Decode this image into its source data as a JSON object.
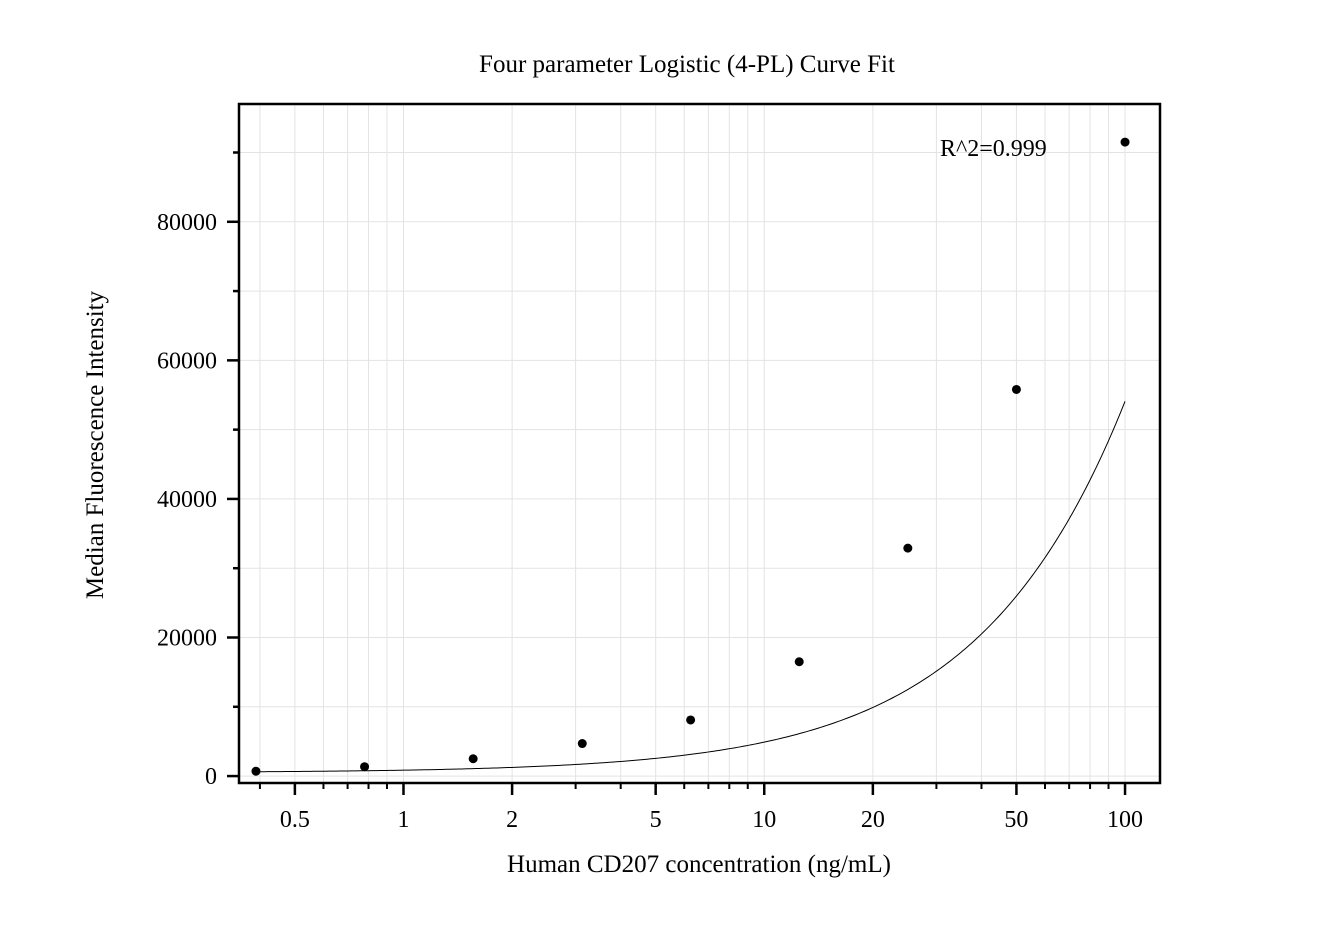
{
  "chart_data": {
    "type": "scatter",
    "title": "Four parameter Logistic (4-PL) Curve Fit",
    "xlabel": "Human CD207 concentration (ng/mL)",
    "ylabel": "Median Fluorescence Intensity",
    "x_scale": "log",
    "xlim": [
      0.35,
      125
    ],
    "ylim": [
      -1000,
      97000
    ],
    "x_ticks": [
      0.5,
      1,
      2,
      5,
      10,
      20,
      50,
      100
    ],
    "x_tick_labels": [
      "0.5",
      "1",
      "2",
      "5",
      "10",
      "20",
      "50",
      "100"
    ],
    "y_ticks": [
      0,
      20000,
      40000,
      60000,
      80000
    ],
    "y_tick_labels": [
      "0",
      "20000",
      "40000",
      "60000",
      "80000"
    ],
    "grid": true,
    "series": [
      {
        "type": "scatter",
        "x": [
          0.39,
          0.78,
          1.56,
          3.13,
          6.25,
          12.5,
          25,
          50,
          100
        ],
        "y": [
          700,
          1350,
          2500,
          4700,
          8100,
          16500,
          32900,
          55800,
          91500
        ],
        "color": "#000000"
      },
      {
        "type": "line",
        "fit": "4PL",
        "params": {
          "A": 500,
          "B": 1.1,
          "C": 2000,
          "D": 1500000
        },
        "x_range": [
          0.39,
          100
        ],
        "color": "#000000"
      }
    ],
    "annotations": [
      {
        "text": "R^2=0.999"
      }
    ]
  }
}
